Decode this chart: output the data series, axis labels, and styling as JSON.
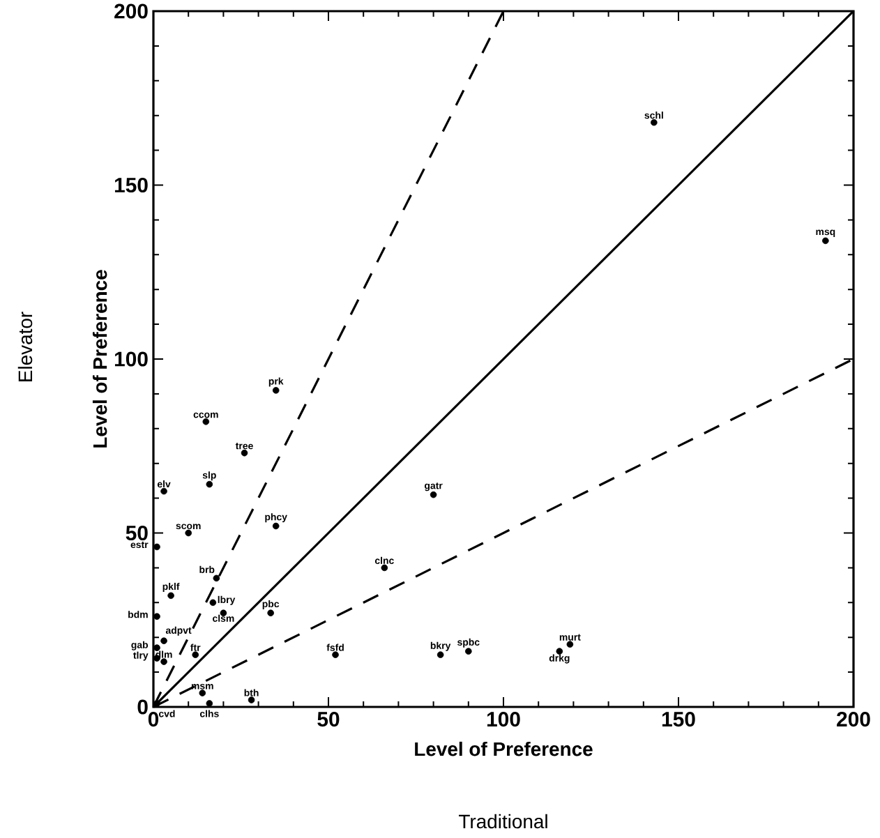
{
  "chart_data": {
    "type": "scatter",
    "xlabel": "Level of Preference",
    "ylabel": "Level of Preference",
    "xlim": [
      0,
      200
    ],
    "ylim": [
      0,
      200
    ],
    "xticks": [
      0,
      50,
      100,
      150,
      200
    ],
    "yticks": [
      0,
      50,
      100,
      150,
      200
    ],
    "grid": false,
    "series": [
      {
        "type": "scatter",
        "marker": "circle",
        "color": "#000000",
        "x": [
          143,
          192,
          35,
          15,
          26,
          16,
          3,
          10,
          35,
          1,
          18,
          5,
          17,
          1,
          20,
          33.5,
          3,
          1,
          12,
          1,
          52,
          3,
          14,
          28,
          1,
          16,
          80,
          66,
          82,
          90,
          119,
          116
        ],
        "values": [
          168,
          134,
          91,
          82,
          73,
          64,
          62,
          50,
          52,
          46,
          37,
          32,
          30,
          26,
          27,
          27,
          19,
          17,
          15,
          14,
          15,
          13,
          4,
          2,
          1,
          1,
          61,
          40,
          15,
          16,
          18,
          16
        ]
      },
      {
        "type": "line",
        "color": "#000000",
        "line_style": "solid",
        "x": [
          0,
          200
        ],
        "values": [
          0,
          200
        ]
      },
      {
        "type": "line",
        "color": "#000000",
        "line_style": "dashed",
        "x": [
          0,
          100
        ],
        "values": [
          0,
          200
        ]
      },
      {
        "type": "line",
        "color": "#000000",
        "line_style": "dashed",
        "x": [
          0,
          200
        ],
        "values": [
          0,
          100
        ]
      }
    ],
    "annotations": [
      "Traditional",
      "Elevator",
      {
        "text": "schl",
        "x": 143,
        "y": 168
      },
      {
        "text": "msq",
        "x": 192,
        "y": 134
      },
      {
        "text": "prk",
        "x": 35,
        "y": 91
      },
      {
        "text": "ccom",
        "x": 15,
        "y": 82
      },
      {
        "text": "tree",
        "x": 26,
        "y": 73
      },
      {
        "text": "slp",
        "x": 16,
        "y": 64
      },
      {
        "text": "elv",
        "x": 3,
        "y": 62
      },
      {
        "text": "scom",
        "x": 10,
        "y": 50
      },
      {
        "text": "phcy",
        "x": 35,
        "y": 52
      },
      {
        "text": "estr",
        "x": 1,
        "y": 46
      },
      {
        "text": "brb",
        "x": 18,
        "y": 37
      },
      {
        "text": "pklf",
        "x": 5,
        "y": 32
      },
      {
        "text": "lbry",
        "x": 17,
        "y": 30
      },
      {
        "text": "bdm",
        "x": 1,
        "y": 26
      },
      {
        "text": "clsm",
        "x": 20,
        "y": 27
      },
      {
        "text": "pbc",
        "x": 33.5,
        "y": 27
      },
      {
        "text": "adpvt",
        "x": 3,
        "y": 19
      },
      {
        "text": "gab",
        "x": 1,
        "y": 17
      },
      {
        "text": "ftr",
        "x": 12,
        "y": 15
      },
      {
        "text": "tlry",
        "x": 1,
        "y": 14
      },
      {
        "text": "fsfd",
        "x": 52,
        "y": 15
      },
      {
        "text": "dlm",
        "x": 3,
        "y": 13
      },
      {
        "text": "msm",
        "x": 14,
        "y": 4
      },
      {
        "text": "bth",
        "x": 28,
        "y": 2
      },
      {
        "text": "cvd",
        "x": 1,
        "y": 1
      },
      {
        "text": "clhs",
        "x": 16,
        "y": 1
      },
      {
        "text": "gatr",
        "x": 80,
        "y": 61
      },
      {
        "text": "clnc",
        "x": 66,
        "y": 40
      },
      {
        "text": "bkry",
        "x": 82,
        "y": 15
      },
      {
        "text": "spbc",
        "x": 90,
        "y": 16
      },
      {
        "text": "murt",
        "x": 119,
        "y": 18
      },
      {
        "text": "drkg",
        "x": 116,
        "y": 16
      }
    ]
  }
}
